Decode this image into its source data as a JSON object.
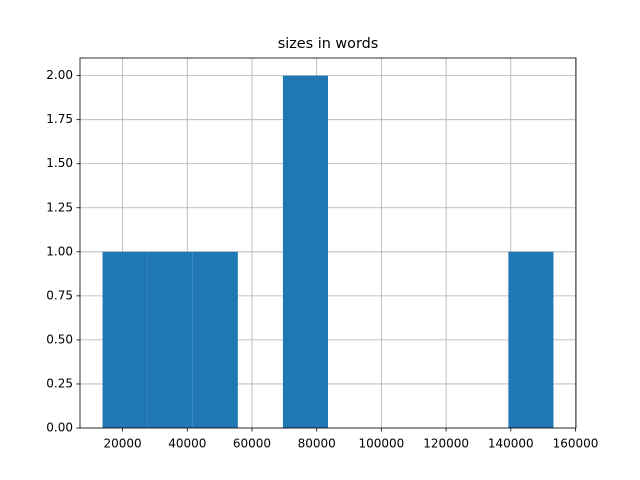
{
  "chart_data": {
    "type": "histogram",
    "title": "sizes in words",
    "bins": [
      13806,
      27744,
      41682,
      55620,
      69558,
      83496,
      97434,
      111372,
      125310,
      139248,
      153186
    ],
    "counts": [
      1,
      1,
      1,
      0,
      2,
      0,
      0,
      0,
      0,
      1
    ],
    "color": "#1f77b4",
    "xlim": [
      6837,
      160155
    ],
    "xticks": [
      20000,
      40000,
      60000,
      80000,
      100000,
      120000,
      140000,
      160000
    ],
    "ylim": [
      0,
      2.1
    ],
    "yticks": [
      {
        "value": 0,
        "label": "0.00"
      },
      {
        "value": 0.25,
        "label": "0.25"
      },
      {
        "value": 0.5,
        "label": "0.50"
      },
      {
        "value": 0.75,
        "label": "0.75"
      },
      {
        "value": 1,
        "label": "1.00"
      },
      {
        "value": 1.25,
        "label": "1.25"
      },
      {
        "value": 1.5,
        "label": "1.50"
      },
      {
        "value": 1.75,
        "label": "1.75"
      },
      {
        "value": 2,
        "label": "2.00"
      }
    ],
    "grid": true
  }
}
